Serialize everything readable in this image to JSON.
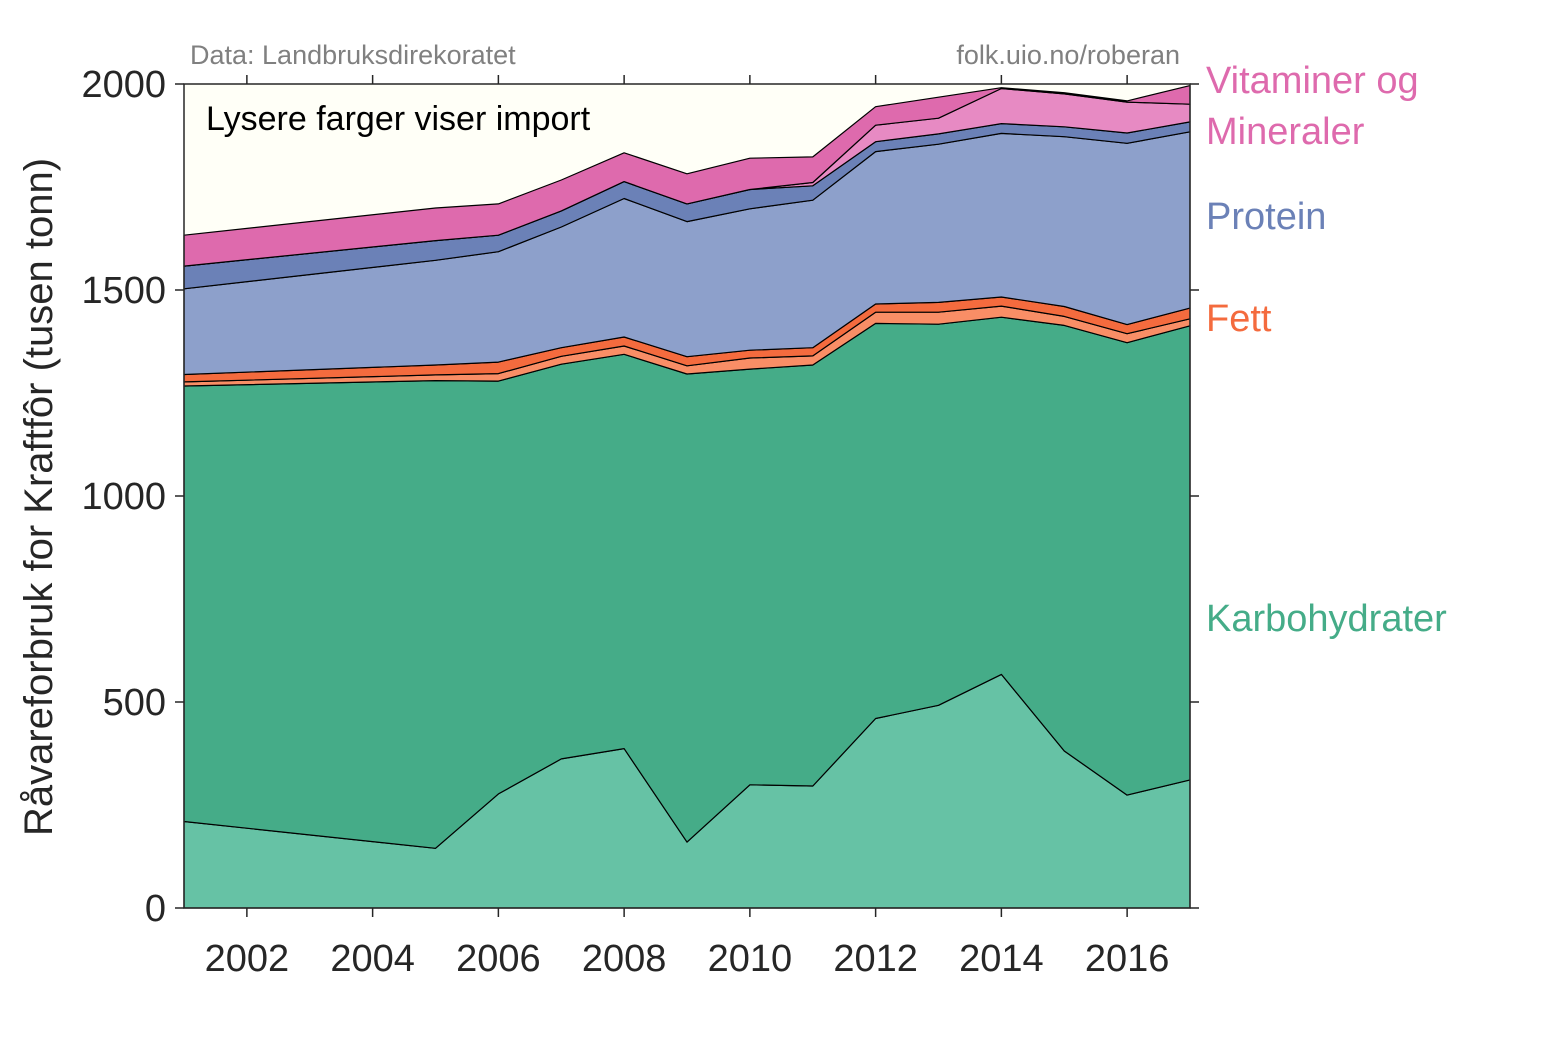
{
  "chart_data": {
    "type": "area",
    "stacked": true,
    "ylabel": "Råvareforbruk for Kraftfôr (tusen tonn)",
    "ylim": [
      0,
      2000
    ],
    "xlim": [
      2001,
      2017
    ],
    "yticks": [
      "0",
      "500",
      "1000",
      "1500",
      "2000"
    ],
    "xticks": [
      "2002",
      "2004",
      "2006",
      "2008",
      "2010",
      "2012",
      "2014",
      "2016"
    ],
    "source_left": "Data: Landbruksdirekoratet",
    "source_right": "folk.uio.no/roberan",
    "annotation": "Lysere farger viser import",
    "background_color": "#fffff7",
    "x": [
      2001,
      2005,
      2006,
      2007,
      2008,
      2009,
      2010,
      2011,
      2012,
      2013,
      2014,
      2015,
      2016,
      2017
    ],
    "series": [
      {
        "group": "Karbohydrater",
        "origin": "import",
        "color": "#66c2a5",
        "values": [
          210,
          145,
          277,
          362,
          387,
          160,
          299,
          296,
          460,
          492,
          567,
          381,
          274,
          311
        ]
      },
      {
        "group": "Karbohydrater",
        "origin": "norsk",
        "color": "#45ac88",
        "values": [
          1057,
          1135,
          1002,
          958,
          957,
          1136,
          1009,
          1022,
          959,
          925,
          867,
          1033,
          1098,
          1102
        ]
      },
      {
        "group": "Fett",
        "origin": "import",
        "color": "#f98e66",
        "values": [
          10,
          14,
          18,
          19,
          20,
          20,
          27,
          22,
          27,
          29,
          27,
          22,
          22,
          17
        ]
      },
      {
        "group": "Fett",
        "origin": "norsk",
        "color": "#f46b3e",
        "values": [
          18,
          24,
          28,
          21,
          22,
          22,
          19,
          20,
          20,
          24,
          22,
          24,
          22,
          26
        ]
      },
      {
        "group": "Protein",
        "origin": "import",
        "color": "#8da0cb",
        "values": [
          208,
          254,
          268,
          293,
          336,
          328,
          343,
          358,
          370,
          384,
          397,
          412,
          440,
          428
        ]
      },
      {
        "group": "Protein",
        "origin": "norsk",
        "color": "#6b81b7",
        "values": [
          55,
          48,
          40,
          39,
          41,
          43,
          47,
          35,
          24,
          25,
          24,
          24,
          25,
          24
        ]
      },
      {
        "group": "Vitaminer og Mineraler",
        "origin": "import",
        "color": "#e78ac3",
        "values": [
          0,
          0,
          0,
          0,
          0,
          0,
          0,
          8,
          40,
          38,
          85,
          80,
          75,
          43
        ]
      },
      {
        "group": "Vitaminer og Mineraler",
        "origin": "norsk",
        "color": "#de6aad",
        "values": [
          75,
          79,
          76,
          75,
          70,
          73,
          76,
          62,
          45,
          51,
          2,
          3,
          3,
          45
        ]
      }
    ],
    "legend": [
      {
        "label": "Vitaminer og",
        "label2": "Mineraler",
        "color": "#de6aad"
      },
      {
        "label": "Protein",
        "color": "#6b81b7"
      },
      {
        "label": "Fett",
        "color": "#f46b3e"
      },
      {
        "label": "Karbohydrater",
        "color": "#45ac88"
      }
    ]
  }
}
